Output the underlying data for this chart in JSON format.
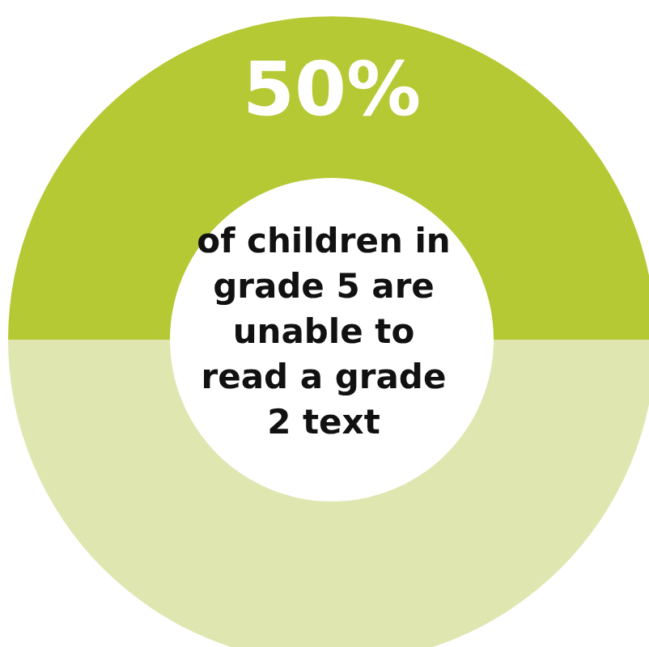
{
  "chart_data": {
    "type": "donut",
    "categories": [
      null,
      null
    ],
    "values": [
      50,
      50
    ],
    "colors": [
      "#b5c934",
      "#dfe6b0"
    ],
    "value_labels": [
      "50%",
      null
    ],
    "annotations": [
      "of children in grade 5 are unable to read a grade 2 text"
    ],
    "legend": false
  }
}
